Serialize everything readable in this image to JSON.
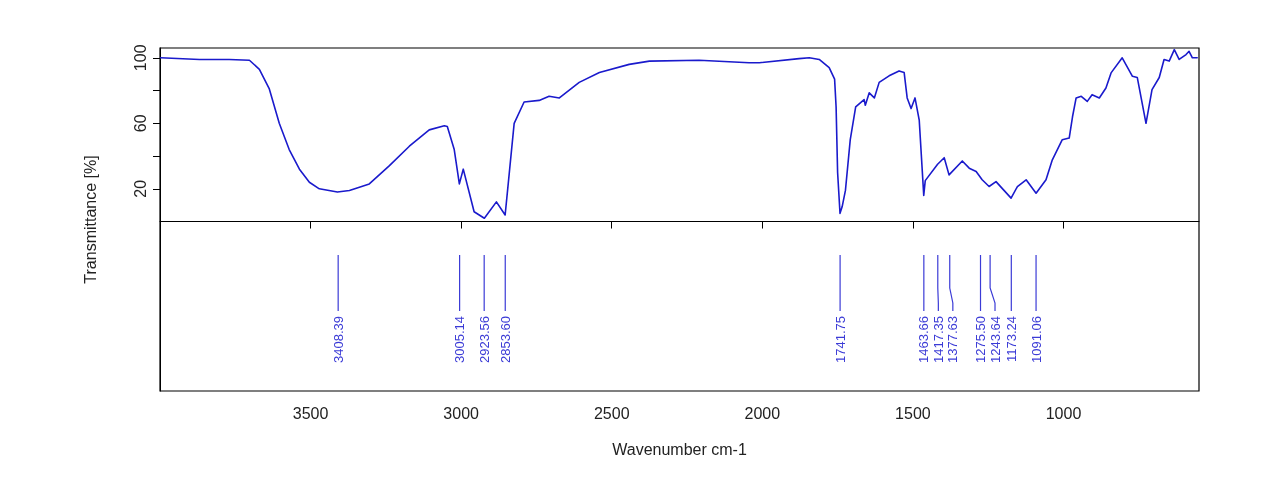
{
  "chart_data": {
    "type": "line",
    "xlabel": "Wavenumber cm-1",
    "ylabel": "Transmittance [%]",
    "xlim": [
      4000,
      550
    ],
    "xticks": [
      3500,
      3000,
      2500,
      2000,
      1500,
      1000
    ],
    "ylim": [
      -103.5,
      106
    ],
    "yticks": [
      100,
      {
        "value": 80,
        "label": null
      },
      60,
      {
        "value": 40,
        "label": null
      },
      20
    ],
    "grid": false,
    "marker": "none",
    "line_style": "solid",
    "series": [
      {
        "color": "#1a1acc",
        "x": [
          3998,
          3869,
          3770,
          3703,
          3670,
          3637,
          3604,
          3571,
          3537,
          3504,
          3471,
          3411,
          3371,
          3305,
          3239,
          3172,
          3106,
          3056,
          3046,
          3023,
          3006,
          2993,
          2957,
          2923,
          2883,
          2854,
          2840,
          2824,
          2791,
          2741,
          2708,
          2674,
          2608,
          2541,
          2442,
          2375,
          2210,
          2044,
          2010,
          1878,
          1844,
          1811,
          1778,
          1760,
          1755,
          1750,
          1742,
          1735,
          1724,
          1708,
          1690,
          1662,
          1658,
          1645,
          1628,
          1612,
          1579,
          1546,
          1529,
          1519,
          1506,
          1493,
          1479,
          1464,
          1459,
          1418,
          1396,
          1380,
          1336,
          1313,
          1290,
          1270,
          1247,
          1224,
          1174,
          1153,
          1124,
          1091,
          1058,
          1037,
          1004,
          981,
          970,
          958,
          941,
          921,
          905,
          881,
          859,
          842,
          805,
          771,
          755,
          726,
          706,
          682,
          666,
          649,
          632,
          616,
          593,
          583,
          572,
          556
        ],
        "values": [
          100,
          99,
          99,
          98.5,
          93,
          81,
          60,
          44,
          32,
          24,
          20,
          18,
          19,
          23,
          34,
          46,
          56,
          58.5,
          58,
          44,
          23,
          32,
          6,
          2,
          12,
          4,
          30,
          60,
          73,
          74,
          76.5,
          75.5,
          85,
          91,
          96,
          98,
          98.5,
          97,
          97,
          99.5,
          100,
          99,
          94,
          87,
          70,
          30,
          5,
          9,
          19,
          50,
          70,
          74.5,
          71,
          78.6,
          75.5,
          85,
          89,
          92,
          91,
          75.5,
          69,
          75.5,
          62,
          16,
          25,
          35,
          39,
          28.5,
          37,
          32.6,
          30.6,
          25.5,
          21.4,
          24.4,
          14.3,
          21.4,
          25.5,
          17.3,
          25.5,
          37.7,
          50,
          51,
          64,
          75.5,
          76.5,
          73.4,
          77.5,
          75.5,
          81.6,
          90.8,
          100,
          88.7,
          88,
          60,
          80.6,
          88,
          99,
          98,
          105,
          99,
          102,
          104,
          100,
          100
        ]
      }
    ],
    "annotations": [
      {
        "text": "3408.39",
        "x": 3408.39
      },
      {
        "text": "3005.14",
        "x": 3005.14
      },
      {
        "text": "2923.56",
        "x": 2923.56
      },
      {
        "text": "2853.60",
        "x": 2853.6
      },
      {
        "text": "1741.75",
        "x": 1741.75
      },
      {
        "text": "1463.66",
        "x": 1463.66
      },
      {
        "text": "1417.35",
        "x": 1417.35
      },
      {
        "text": "1377.63",
        "x": 1377.63
      },
      {
        "text": "1275.50",
        "x": 1275.5
      },
      {
        "text": "1243.64",
        "x": 1243.64
      },
      {
        "text": "1173.24",
        "x": 1173.24
      },
      {
        "text": "1091.06",
        "x": 1091.06
      }
    ]
  }
}
